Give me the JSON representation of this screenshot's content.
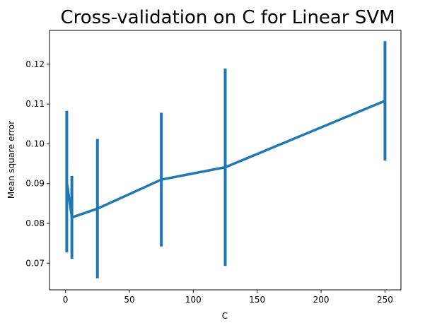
{
  "chart_data": {
    "type": "line",
    "title": "Cross-validation on C for Linear SVM",
    "xlabel": "C",
    "ylabel": "Mean square error",
    "xlim": [
      -12.5,
      262.5
    ],
    "ylim": [
      0.0633,
      0.1285
    ],
    "xticks": [
      0,
      50,
      100,
      150,
      200,
      250
    ],
    "yticks": [
      0.07,
      0.08,
      0.09,
      0.1,
      0.11,
      0.12
    ],
    "ytick_labels": [
      "0.07",
      "0.08",
      "0.09",
      "0.10",
      "0.11",
      "0.12"
    ],
    "grid": false,
    "series": [
      {
        "color": "#1f77b4",
        "points": [
          {
            "x": 1,
            "y": 0.0905,
            "err": 0.0178
          },
          {
            "x": 5,
            "y": 0.0815,
            "err": 0.0104
          },
          {
            "x": 25,
            "y": 0.0837,
            "err": 0.0175
          },
          {
            "x": 75,
            "y": 0.091,
            "err": 0.0168
          },
          {
            "x": 125,
            "y": 0.0941,
            "err": 0.0248
          },
          {
            "x": 250,
            "y": 0.1108,
            "err": 0.015
          }
        ]
      }
    ]
  }
}
